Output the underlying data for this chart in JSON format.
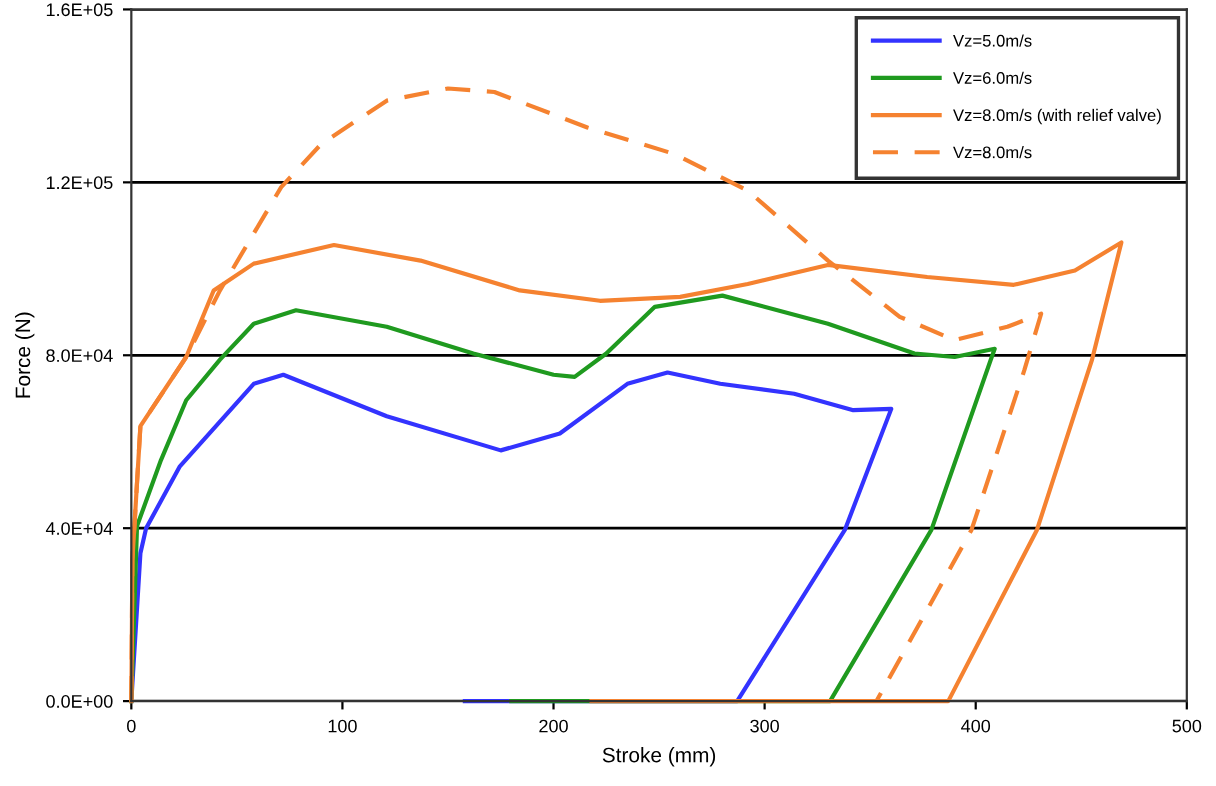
{
  "chart_data": {
    "type": "line",
    "xlabel": "Stroke (mm)",
    "ylabel": "Force (N)",
    "xlim": [
      0,
      500
    ],
    "xticks": [
      0,
      100,
      200,
      300,
      400,
      500
    ],
    "ylim": [
      0,
      160000
    ],
    "yticks": [
      {
        "value": 0,
        "label": "0.0E+00"
      },
      {
        "value": 40000,
        "label": "4.0E+04"
      },
      {
        "value": 80000,
        "label": "8.0E+04"
      },
      {
        "value": 120000,
        "label": "1.2E+05"
      },
      {
        "value": 160000,
        "label": "1.6E+05"
      }
    ],
    "grid": "y",
    "legend": "top right",
    "marker": "none",
    "series": [
      {
        "name": "Vz=5.0m/s",
        "color": "#3333ff",
        "line_style": "solid",
        "x": [
          0,
          4.3,
          7,
          23,
          58,
          72,
          121,
          175,
          203,
          235,
          254,
          279,
          314,
          342,
          360,
          338,
          287,
          158
        ],
        "values": [
          0,
          34200,
          40000,
          54300,
          73400,
          75500,
          65900,
          58000,
          61900,
          73400,
          76000,
          73400,
          71100,
          67300,
          67600,
          39600,
          0,
          0
        ]
      },
      {
        "name": "Vz=6.0m/s",
        "color": "#1f9a1f",
        "line_style": "solid",
        "x": [
          0,
          2.7,
          14,
          26,
          42,
          58,
          78,
          121,
          162,
          200,
          210,
          225,
          248,
          280,
          330,
          371,
          390,
          409,
          407,
          379,
          331,
          180
        ],
        "values": [
          0,
          40500,
          55700,
          69600,
          79000,
          87300,
          90400,
          86600,
          80400,
          75500,
          75000,
          80400,
          91200,
          93800,
          87300,
          80400,
          79600,
          81500,
          78800,
          39600,
          0,
          0
        ]
      },
      {
        "name": "Vz=8.0m/s (with relief valve)",
        "color": "#f58230",
        "line_style": "solid",
        "x": [
          0,
          0.5,
          4.3,
          26,
          39,
          58,
          96,
          137,
          184,
          222,
          260,
          292,
          330,
          377,
          418,
          447,
          469,
          455,
          429,
          387,
          218
        ],
        "values": [
          0,
          32600,
          63600,
          79600,
          95000,
          101200,
          105500,
          101900,
          95000,
          92600,
          93500,
          96500,
          100900,
          98100,
          96300,
          99600,
          106100,
          78800,
          39600,
          0,
          0
        ]
      },
      {
        "name": "Vz=8.0m/s",
        "color": "#f58230",
        "line_style": "dashed",
        "x": [
          0,
          0.5,
          4.3,
          26,
          42,
          71,
          90,
          121,
          150,
          172,
          216,
          257,
          292,
          330,
          364,
          390,
          415,
          431,
          423,
          398,
          353
        ],
        "values": [
          0,
          32600,
          63600,
          79600,
          95000,
          118900,
          128900,
          138900,
          141700,
          140900,
          132700,
          126600,
          118100,
          101900,
          88900,
          83500,
          86600,
          89600,
          76500,
          39600,
          0
        ]
      }
    ]
  }
}
